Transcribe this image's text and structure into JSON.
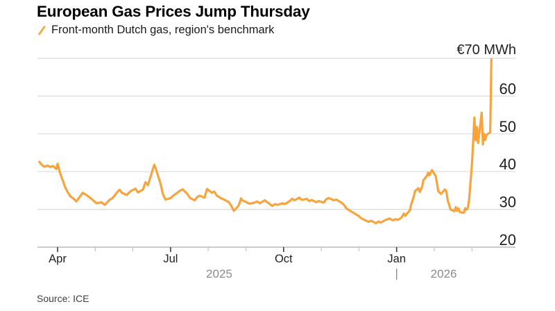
{
  "chart_data": {
    "type": "line",
    "title": "European Gas Prices Jump Thursday",
    "legend_label": "Front-month Dutch gas, region's benchmark",
    "source": "Source: ICE",
    "line_color": "#F8A33C",
    "grid": true,
    "legend_position": "top-left",
    "ylim": [
      20,
      70
    ],
    "yticks": [
      {
        "value": 70,
        "label": "€70 MWh"
      },
      {
        "value": 60,
        "label": "60"
      },
      {
        "value": 50,
        "label": "50"
      },
      {
        "value": 40,
        "label": "40"
      },
      {
        "value": 30,
        "label": "30"
      },
      {
        "value": 20,
        "label": "20"
      }
    ],
    "xticks": [
      {
        "date": "2025-04-01",
        "label": "Apr",
        "major": true
      },
      {
        "date": "2025-05-01",
        "label": "",
        "major": false
      },
      {
        "date": "2025-06-01",
        "label": "",
        "major": false
      },
      {
        "date": "2025-07-01",
        "label": "Jul",
        "major": true
      },
      {
        "date": "2025-08-01",
        "label": "",
        "major": false
      },
      {
        "date": "2025-09-01",
        "label": "",
        "major": false
      },
      {
        "date": "2025-10-01",
        "label": "Oct",
        "major": true
      },
      {
        "date": "2025-11-01",
        "label": "",
        "major": false
      },
      {
        "date": "2025-12-01",
        "label": "",
        "major": false
      },
      {
        "date": "2026-01-01",
        "label": "Jan",
        "major": true
      },
      {
        "date": "2026-02-01",
        "label": "",
        "major": false
      },
      {
        "date": "2026-03-01",
        "label": "",
        "major": false
      }
    ],
    "year_labels": [
      {
        "label": "2025",
        "anchor_date": "2025-08-10"
      },
      {
        "label": "2026",
        "anchor_date": "2026-02-08"
      }
    ],
    "year_separator_date": "2026-01-01",
    "series": [
      {
        "name": "Front-month Dutch gas, region's benchmark",
        "points": [
          [
            "2025-03-17",
            42.6
          ],
          [
            "2025-03-19",
            41.8
          ],
          [
            "2025-03-21",
            41.3
          ],
          [
            "2025-03-24",
            41.6
          ],
          [
            "2025-03-26",
            41.2
          ],
          [
            "2025-03-28",
            41.5
          ],
          [
            "2025-03-31",
            40.7
          ],
          [
            "2025-04-01",
            42.1
          ],
          [
            "2025-04-03",
            39.6
          ],
          [
            "2025-04-07",
            35.9
          ],
          [
            "2025-04-09",
            34.6
          ],
          [
            "2025-04-11",
            33.5
          ],
          [
            "2025-04-14",
            32.8
          ],
          [
            "2025-04-16",
            32.1
          ],
          [
            "2025-04-21",
            34.4
          ],
          [
            "2025-04-24",
            33.8
          ],
          [
            "2025-04-28",
            32.8
          ],
          [
            "2025-04-30",
            32.2
          ],
          [
            "2025-05-02",
            31.6
          ],
          [
            "2025-05-06",
            31.9
          ],
          [
            "2025-05-09",
            31.2
          ],
          [
            "2025-05-13",
            32.6
          ],
          [
            "2025-05-15",
            32.9
          ],
          [
            "2025-05-19",
            34.5
          ],
          [
            "2025-05-21",
            35.2
          ],
          [
            "2025-05-23",
            34.4
          ],
          [
            "2025-05-27",
            33.8
          ],
          [
            "2025-05-30",
            34.8
          ],
          [
            "2025-06-03",
            35.5
          ],
          [
            "2025-06-05",
            34.5
          ],
          [
            "2025-06-09",
            35.2
          ],
          [
            "2025-06-11",
            37.2
          ],
          [
            "2025-06-13",
            36.4
          ],
          [
            "2025-06-16",
            39.7
          ],
          [
            "2025-06-18",
            41.8
          ],
          [
            "2025-06-19",
            41.0
          ],
          [
            "2025-06-23",
            36.8
          ],
          [
            "2025-06-25",
            33.9
          ],
          [
            "2025-06-27",
            32.6
          ],
          [
            "2025-07-01",
            33.0
          ],
          [
            "2025-07-03",
            33.6
          ],
          [
            "2025-07-07",
            34.5
          ],
          [
            "2025-07-09",
            35.0
          ],
          [
            "2025-07-11",
            35.3
          ],
          [
            "2025-07-15",
            34.0
          ],
          [
            "2025-07-17",
            33.0
          ],
          [
            "2025-07-21",
            32.4
          ],
          [
            "2025-07-23",
            33.3
          ],
          [
            "2025-07-25",
            33.6
          ],
          [
            "2025-07-29",
            33.1
          ],
          [
            "2025-07-31",
            35.4
          ],
          [
            "2025-08-04",
            34.4
          ],
          [
            "2025-08-06",
            34.7
          ],
          [
            "2025-08-08",
            33.6
          ],
          [
            "2025-08-12",
            32.9
          ],
          [
            "2025-08-14",
            32.6
          ],
          [
            "2025-08-18",
            31.9
          ],
          [
            "2025-08-20",
            30.9
          ],
          [
            "2025-08-22",
            29.6
          ],
          [
            "2025-08-26",
            31.0
          ],
          [
            "2025-08-28",
            32.9
          ],
          [
            "2025-08-29",
            32.4
          ],
          [
            "2025-09-02",
            31.8
          ],
          [
            "2025-09-04",
            31.5
          ],
          [
            "2025-09-08",
            31.8
          ],
          [
            "2025-09-10",
            32.1
          ],
          [
            "2025-09-12",
            31.6
          ],
          [
            "2025-09-16",
            32.4
          ],
          [
            "2025-09-18",
            31.9
          ],
          [
            "2025-09-22",
            30.9
          ],
          [
            "2025-09-24",
            31.4
          ],
          [
            "2025-09-26",
            31.2
          ],
          [
            "2025-09-30",
            31.6
          ],
          [
            "2025-10-02",
            31.4
          ],
          [
            "2025-10-06",
            32.2
          ],
          [
            "2025-10-08",
            32.8
          ],
          [
            "2025-10-10",
            32.4
          ],
          [
            "2025-10-14",
            33.1
          ],
          [
            "2025-10-16",
            32.5
          ],
          [
            "2025-10-20",
            32.8
          ],
          [
            "2025-10-22",
            32.2
          ],
          [
            "2025-10-24",
            32.5
          ],
          [
            "2025-10-28",
            31.9
          ],
          [
            "2025-10-30",
            32.2
          ],
          [
            "2025-11-03",
            31.8
          ],
          [
            "2025-11-05",
            32.7
          ],
          [
            "2025-11-07",
            33.0
          ],
          [
            "2025-11-11",
            32.4
          ],
          [
            "2025-11-13",
            32.6
          ],
          [
            "2025-11-17",
            31.8
          ],
          [
            "2025-11-19",
            31.2
          ],
          [
            "2025-11-21",
            30.3
          ],
          [
            "2025-11-25",
            29.4
          ],
          [
            "2025-11-27",
            29.0
          ],
          [
            "2025-12-01",
            28.2
          ],
          [
            "2025-12-03",
            27.6
          ],
          [
            "2025-12-05",
            27.3
          ],
          [
            "2025-12-09",
            26.7
          ],
          [
            "2025-12-11",
            27.0
          ],
          [
            "2025-12-15",
            26.3
          ],
          [
            "2025-12-17",
            26.8
          ],
          [
            "2025-12-19",
            26.5
          ],
          [
            "2025-12-23",
            27.2
          ],
          [
            "2025-12-26",
            27.6
          ],
          [
            "2025-12-29",
            27.1
          ],
          [
            "2025-12-31",
            27.4
          ],
          [
            "2026-01-02",
            27.2
          ],
          [
            "2026-01-05",
            27.8
          ],
          [
            "2026-01-07",
            28.9
          ],
          [
            "2026-01-08",
            28.3
          ],
          [
            "2026-01-12",
            29.8
          ],
          [
            "2026-01-13",
            31.4
          ],
          [
            "2026-01-15",
            33.2
          ],
          [
            "2026-01-16",
            34.8
          ],
          [
            "2026-01-19",
            35.6
          ],
          [
            "2026-01-20",
            34.6
          ],
          [
            "2026-01-22",
            36.0
          ],
          [
            "2026-01-23",
            37.7
          ],
          [
            "2026-01-26",
            38.9
          ],
          [
            "2026-01-27",
            39.7
          ],
          [
            "2026-01-28",
            39.0
          ],
          [
            "2026-01-30",
            40.4
          ],
          [
            "2026-02-02",
            38.9
          ],
          [
            "2026-02-03",
            36.9
          ],
          [
            "2026-02-04",
            34.8
          ],
          [
            "2026-02-06",
            34.1
          ],
          [
            "2026-02-09",
            35.3
          ],
          [
            "2026-02-10",
            34.7
          ],
          [
            "2026-02-11",
            32.3
          ],
          [
            "2026-02-12",
            31.3
          ],
          [
            "2026-02-13",
            30.0
          ],
          [
            "2026-02-16",
            29.5
          ],
          [
            "2026-02-17",
            30.6
          ],
          [
            "2026-02-18",
            29.6
          ],
          [
            "2026-02-19",
            30.3
          ],
          [
            "2026-02-20",
            29.3
          ],
          [
            "2026-02-23",
            29.1
          ],
          [
            "2026-02-24",
            30.3
          ],
          [
            "2026-02-25",
            29.9
          ],
          [
            "2026-02-26",
            30.4
          ],
          [
            "2026-02-27",
            33.0
          ],
          [
            "2026-03-01",
            42.0
          ],
          [
            "2026-03-03",
            54.3
          ],
          [
            "2026-03-04",
            48.3
          ],
          [
            "2026-03-05",
            51.8
          ],
          [
            "2026-03-06",
            47.6
          ],
          [
            "2026-03-08",
            52.8
          ],
          [
            "2026-03-09",
            55.6
          ],
          [
            "2026-03-10",
            47.2
          ],
          [
            "2026-03-11",
            50.0
          ],
          [
            "2026-03-12",
            48.4
          ],
          [
            "2026-03-13",
            49.7
          ],
          [
            "2026-03-15",
            50.2
          ],
          [
            "2026-03-16",
            50.4
          ],
          [
            "2026-03-17",
            69.8
          ]
        ]
      }
    ]
  },
  "colors": {
    "line": "#F8A33C",
    "gridline": "#DBDBDB",
    "axis_line": "#ACACAC",
    "tick_major": "#3c3c3c",
    "tick_minor": "#c6c6c6",
    "axis_label": "#1f1f1f",
    "year_label": "#8c8c8c",
    "title": "#000000"
  }
}
